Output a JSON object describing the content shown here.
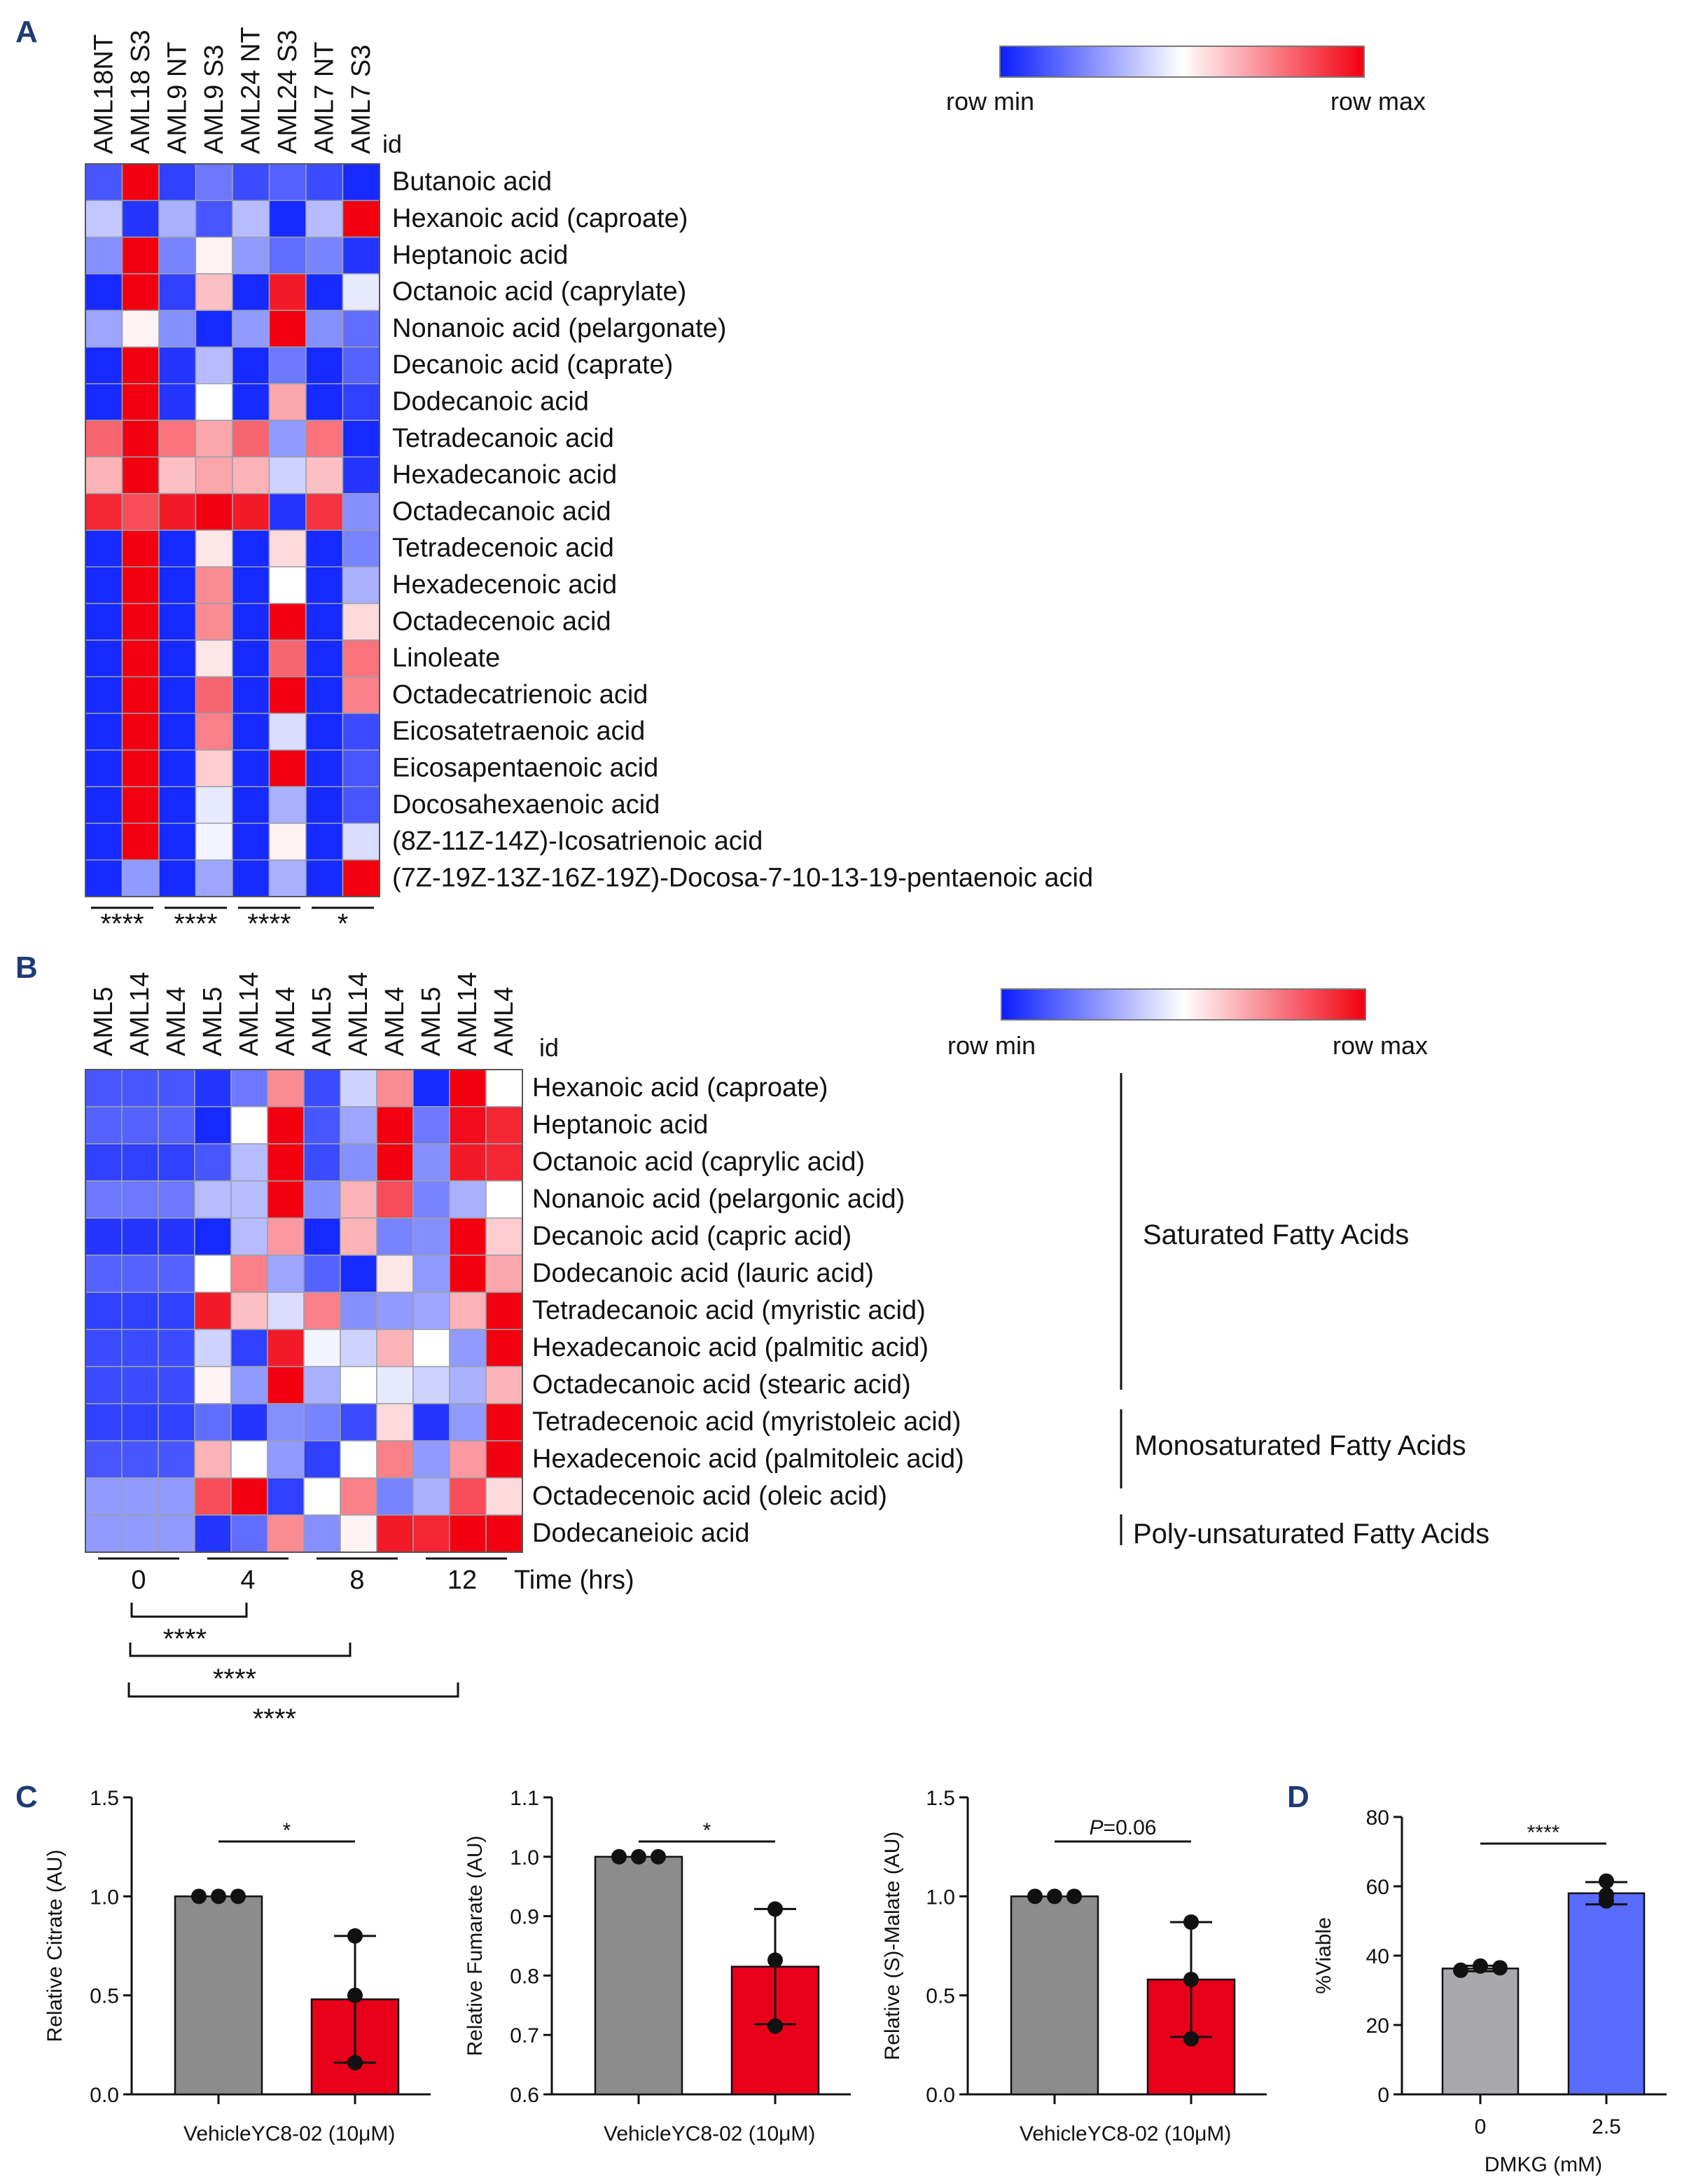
{
  "panels": {
    "A": {
      "label": "A",
      "columns": [
        "AML18NT",
        "AML18 S3",
        "AML9 NT",
        "AML9 S3",
        "AML24 NT",
        "AML24 S3",
        "AML7 NT",
        "AML7 S3"
      ],
      "id_label": "id",
      "legend": {
        "min_label": "row min",
        "max_label": "row max"
      },
      "rows": [
        "Butanoic acid",
        "Hexanoic acid (caproate)",
        "Heptanoic acid",
        "Octanoic acid (caprylate)",
        "Nonanoic acid (pelargonate)",
        "Decanoic acid (caprate)",
        "Dodecanoic acid",
        "Tetradecanoic acid",
        "Hexadecanoic acid",
        "Octadecanoic acid",
        "Tetradecenoic acid",
        "Hexadecenoic acid",
        "Octadecenoic acid",
        "Linoleate",
        "Octadecatrienoic acid",
        "Eicosatetraenoic acid",
        "Eicosapentaenoic acid",
        "Docosahexaenoic acid",
        "(8Z-11Z-14Z)-Icosatrienoic acid",
        "(7Z-19Z-13Z-16Z-19Z)-Docosa-7-10-13-19-pentaenoic acid"
      ],
      "significance": [
        "****",
        "****",
        "****",
        "*"
      ]
    },
    "B": {
      "label": "B",
      "columns": [
        "AML5",
        "AML14",
        "AML4",
        "AML5",
        "AML14",
        "AML4",
        "AML5",
        "AML14",
        "AML4",
        "AML5",
        "AML14",
        "AML4"
      ],
      "id_label": "id",
      "legend": {
        "min_label": "row min",
        "max_label": "row max"
      },
      "rows": [
        "Hexanoic acid (caproate)",
        "Heptanoic acid",
        "Octanoic acid (caprylic acid)",
        "Nonanoic acid (pelargonic acid)",
        "Decanoic acid (capric acid)",
        "Dodecanoic acid (lauric acid)",
        "Tetradecanoic acid (myristic acid)",
        "Hexadecanoic acid (palmitic acid)",
        "Octadecanoic acid (stearic acid)",
        "Tetradecenoic acid (myristoleic acid)",
        "Hexadecenoic acid (palmitoleic acid)",
        "Octadecenoic acid (oleic acid)",
        "Dodecaneioic acid"
      ],
      "groups": [
        {
          "label": "Saturated Fatty Acids"
        },
        {
          "label": "Monosaturated Fatty Acids"
        },
        {
          "label": "Poly-unsaturated Fatty Acids"
        }
      ],
      "time_points": [
        "0",
        "4",
        "8",
        "12"
      ],
      "time_label": "Time (hrs)",
      "significance": [
        "****",
        "****",
        "****"
      ]
    },
    "C": {
      "label": "C"
    },
    "D": {
      "label": "D"
    }
  },
  "chart_data": [
    {
      "type": "heatmap",
      "panel": "A",
      "scale": "row-normalized, -1 = row min (blue), 0 = mid (white), 1 = row max (red)",
      "values": [
        [
          -0.75,
          1.0,
          -0.85,
          -0.6,
          -0.8,
          -0.7,
          -0.8,
          -0.95
        ],
        [
          -0.25,
          -0.9,
          -0.35,
          -0.75,
          -0.3,
          -0.95,
          -0.3,
          1.0
        ],
        [
          -0.5,
          1.0,
          -0.55,
          0.05,
          -0.45,
          -0.65,
          -0.55,
          -0.9
        ],
        [
          -0.95,
          1.0,
          -0.85,
          0.25,
          -0.95,
          0.9,
          -0.95,
          -0.1
        ],
        [
          -0.4,
          0.05,
          -0.5,
          -0.95,
          -0.45,
          1.0,
          -0.5,
          -0.65
        ],
        [
          -0.95,
          1.0,
          -0.9,
          -0.3,
          -0.95,
          -0.6,
          -0.95,
          -0.7
        ],
        [
          -0.95,
          1.0,
          -0.9,
          0.0,
          -0.95,
          0.35,
          -0.95,
          -0.85
        ],
        [
          0.6,
          1.0,
          0.55,
          0.35,
          0.6,
          -0.45,
          0.55,
          -0.95
        ],
        [
          0.3,
          1.0,
          0.25,
          0.35,
          0.3,
          -0.2,
          0.25,
          -0.9
        ],
        [
          0.85,
          0.7,
          0.9,
          1.0,
          0.9,
          -0.9,
          0.8,
          -0.5
        ],
        [
          -0.95,
          1.0,
          -0.95,
          0.1,
          -0.95,
          0.15,
          -0.95,
          -0.55
        ],
        [
          -0.95,
          1.0,
          -0.95,
          0.45,
          -0.95,
          0.0,
          -0.95,
          -0.35
        ],
        [
          -0.95,
          1.0,
          -0.95,
          0.45,
          -0.95,
          1.0,
          -0.95,
          0.15
        ],
        [
          -0.95,
          1.0,
          -0.95,
          0.1,
          -0.95,
          0.6,
          -0.95,
          0.55
        ],
        [
          -0.95,
          1.0,
          -0.95,
          0.6,
          -0.95,
          1.0,
          -0.95,
          0.5
        ],
        [
          -0.95,
          1.0,
          -0.95,
          0.5,
          -0.95,
          -0.15,
          -0.95,
          -0.8
        ],
        [
          -0.95,
          1.0,
          -0.95,
          0.2,
          -0.95,
          1.0,
          -0.95,
          -0.75
        ],
        [
          -0.95,
          1.0,
          -0.95,
          -0.1,
          -0.95,
          -0.35,
          -0.95,
          -0.75
        ],
        [
          -0.95,
          1.0,
          -0.95,
          -0.05,
          -0.95,
          0.05,
          -0.95,
          -0.15
        ],
        [
          -0.95,
          -0.45,
          -0.95,
          -0.4,
          -0.95,
          -0.35,
          -0.95,
          1.0
        ]
      ]
    },
    {
      "type": "heatmap",
      "panel": "B",
      "scale": "row-normalized, -1 = row min (blue), 0 = mid (white), 1 = row max (red)",
      "values": [
        [
          -0.75,
          -0.75,
          -0.75,
          -0.9,
          -0.6,
          0.45,
          -0.8,
          -0.2,
          0.45,
          -0.95,
          1.0,
          0.0
        ],
        [
          -0.7,
          -0.7,
          -0.7,
          -0.95,
          0.0,
          1.0,
          -0.75,
          -0.4,
          1.0,
          -0.6,
          0.95,
          0.85
        ],
        [
          -0.85,
          -0.85,
          -0.85,
          -0.75,
          -0.3,
          1.0,
          -0.8,
          -0.5,
          1.0,
          -0.5,
          0.9,
          0.85
        ],
        [
          -0.6,
          -0.6,
          -0.6,
          -0.3,
          -0.3,
          1.0,
          -0.5,
          0.3,
          0.7,
          -0.55,
          -0.35,
          0.0
        ],
        [
          -0.9,
          -0.9,
          -0.9,
          -0.95,
          -0.3,
          0.4,
          -0.95,
          0.3,
          -0.55,
          -0.5,
          1.0,
          0.2
        ],
        [
          -0.7,
          -0.7,
          -0.7,
          0.0,
          0.5,
          -0.4,
          -0.7,
          -0.95,
          0.1,
          -0.45,
          1.0,
          0.35
        ],
        [
          -0.85,
          -0.85,
          -0.85,
          0.9,
          0.25,
          -0.15,
          0.5,
          -0.5,
          -0.45,
          -0.4,
          0.3,
          1.0
        ],
        [
          -0.8,
          -0.8,
          -0.8,
          -0.2,
          -0.85,
          0.9,
          -0.05,
          -0.2,
          0.3,
          0.0,
          -0.45,
          1.0
        ],
        [
          -0.8,
          -0.8,
          -0.8,
          0.05,
          -0.45,
          1.0,
          -0.35,
          0.0,
          -0.1,
          -0.2,
          -0.35,
          0.3
        ],
        [
          -0.85,
          -0.85,
          -0.85,
          -0.65,
          -0.9,
          -0.5,
          -0.55,
          -0.8,
          0.15,
          -0.9,
          -0.45,
          1.0
        ],
        [
          -0.75,
          -0.75,
          -0.75,
          0.3,
          0.0,
          -0.45,
          -0.85,
          0.0,
          0.5,
          -0.45,
          0.4,
          1.0
        ],
        [
          -0.45,
          -0.45,
          -0.45,
          0.7,
          1.0,
          -0.85,
          0.0,
          0.5,
          -0.55,
          -0.35,
          0.7,
          0.15
        ],
        [
          -0.45,
          -0.45,
          -0.45,
          -0.9,
          -0.65,
          0.45,
          -0.5,
          0.05,
          0.9,
          0.85,
          1.0,
          1.0
        ]
      ]
    },
    {
      "type": "bar",
      "panel": "C1",
      "categories": [
        "Vehicle",
        "YC8-02 (10μM)"
      ],
      "values": [
        1.0,
        0.48
      ],
      "points": [
        [
          1.0,
          1.0,
          1.0
        ],
        [
          0.8,
          0.5,
          0.16
        ]
      ],
      "error": [
        0.0,
        0.32
      ],
      "ylabel": "Relative Citrate (AU)",
      "ylim": [
        0.0,
        1.5
      ],
      "yticks": [
        "0.0",
        "0.5",
        "1.0",
        "1.5"
      ],
      "significance": "*",
      "colors": [
        "#8c8c8c",
        "#e8001a"
      ]
    },
    {
      "type": "bar",
      "panel": "C2",
      "categories": [
        "Vehicle",
        "YC8-02 (10μM)"
      ],
      "values": [
        1.0,
        0.815
      ],
      "points": [
        [
          1.0,
          1.0,
          1.0
        ],
        [
          0.912,
          0.826,
          0.715
        ]
      ],
      "error": [
        0.0,
        0.097
      ],
      "ylabel": "Relative Fumarate (AU)",
      "ylim": [
        0.6,
        1.1
      ],
      "yticks": [
        "0.6",
        "0.7",
        "0.8",
        "0.9",
        "1.0",
        "1.1"
      ],
      "significance": "*",
      "colors": [
        "#8c8c8c",
        "#e8001a"
      ]
    },
    {
      "type": "bar",
      "panel": "C3",
      "categories": [
        "Vehicle",
        "YC8-02 (10μM)"
      ],
      "values": [
        1.0,
        0.58
      ],
      "points": [
        [
          1.0,
          1.0,
          1.0
        ],
        [
          0.87,
          0.58,
          0.28
        ]
      ],
      "error": [
        0.0,
        0.29
      ],
      "ylabel": "Relative (S)-Malate (AU)",
      "ylim": [
        0.0,
        1.5
      ],
      "yticks": [
        "0.0",
        "0.5",
        "1.0",
        "1.5"
      ],
      "significance": "P=0.06",
      "colors": [
        "#8c8c8c",
        "#e8001a"
      ]
    },
    {
      "type": "bar",
      "panel": "D",
      "categories": [
        "0",
        "2.5"
      ],
      "values": [
        36.3,
        58.0
      ],
      "points": [
        [
          35.8,
          37.0,
          36.5
        ],
        [
          55.8,
          61.5,
          57.5
        ]
      ],
      "error": [
        0.8,
        3.2
      ],
      "xlabel": "DMKG (mM)",
      "ylabel": "%Viable",
      "ylim": [
        0,
        80
      ],
      "yticks": [
        "0",
        "20",
        "40",
        "60",
        "80"
      ],
      "significance": "****",
      "colors": [
        "#a9a9ad",
        "#5a6cff"
      ]
    }
  ]
}
